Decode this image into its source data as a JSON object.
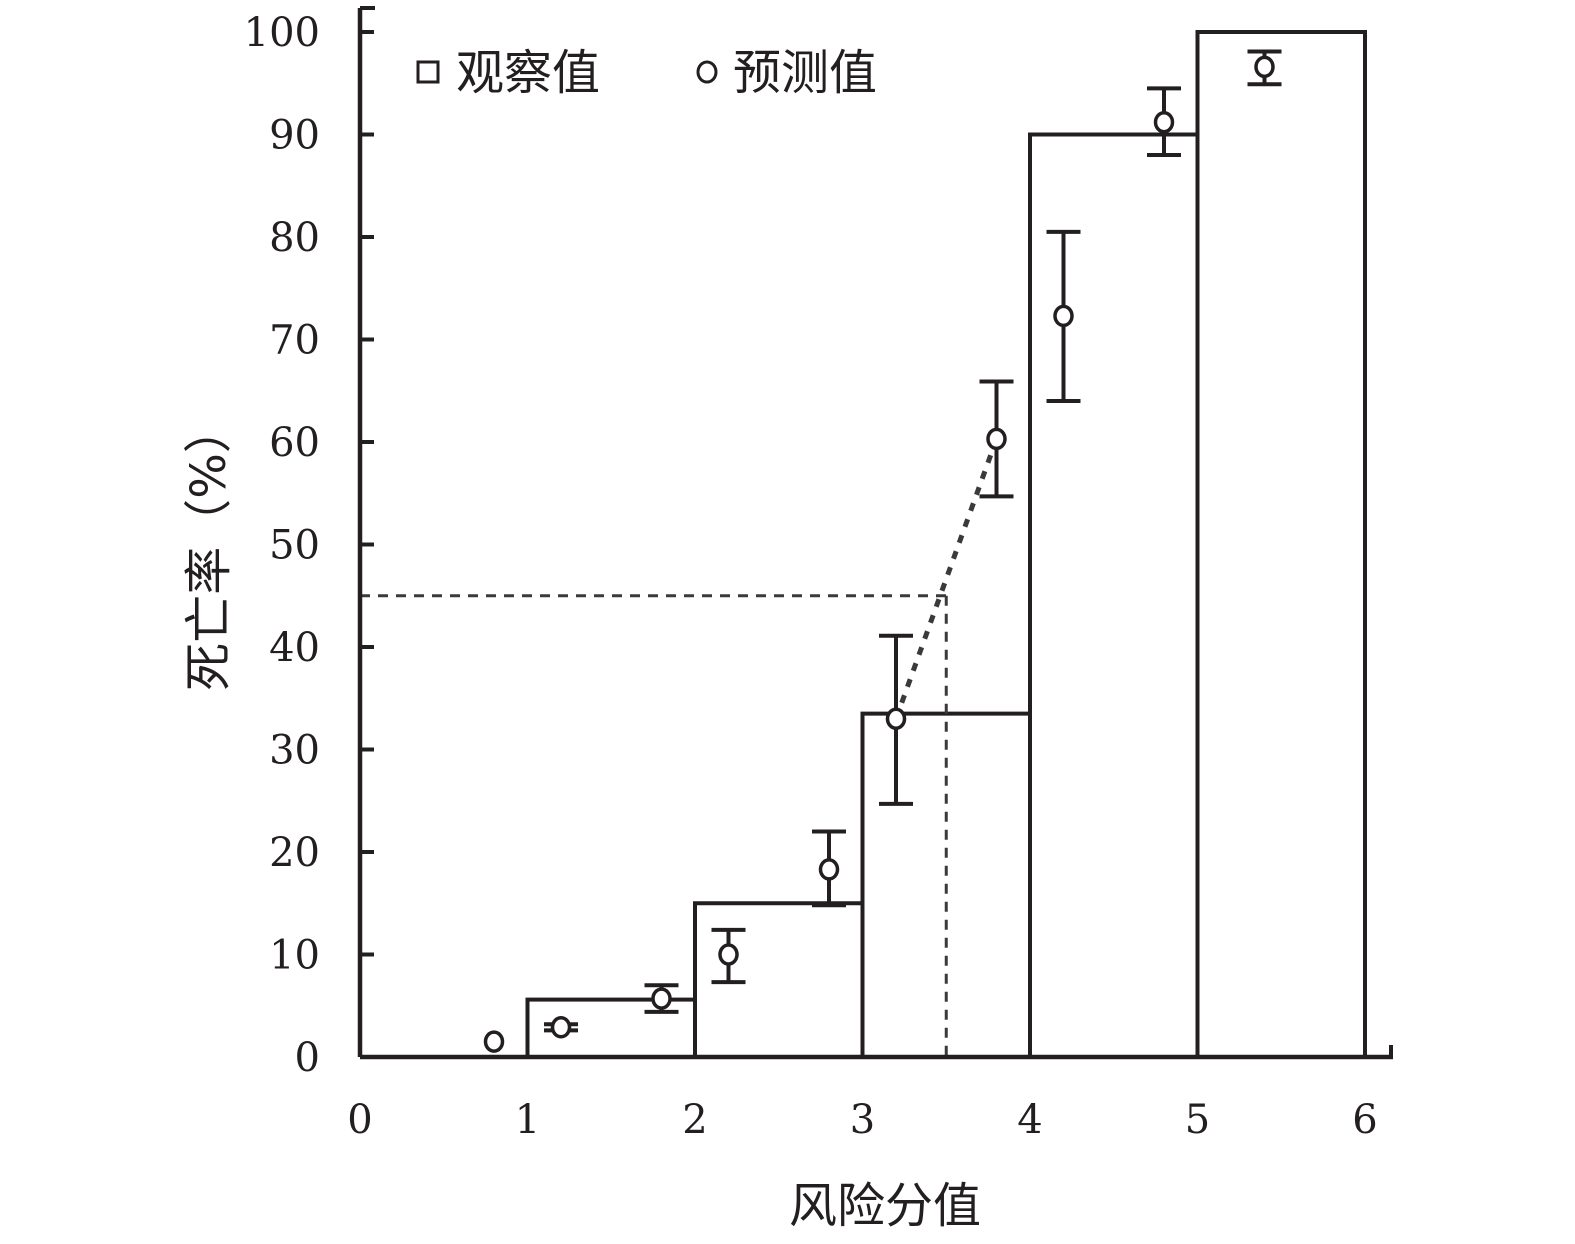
{
  "chart_data": {
    "type": "bar",
    "xlabel": "风险分值",
    "ylabel": "死亡率（%）",
    "xlim": [
      0,
      6
    ],
    "ylim": [
      0,
      100
    ],
    "x_ticks": [
      "0",
      "1",
      "2",
      "3",
      "4",
      "5",
      "6"
    ],
    "y_ticks": [
      "0",
      "10",
      "20",
      "30",
      "40",
      "50",
      "60",
      "70",
      "80",
      "90",
      "100"
    ],
    "legend": {
      "placement": "top-left",
      "entries": [
        {
          "symbol": "square",
          "label": "观察值"
        },
        {
          "symbol": "circle",
          "label": "预测值"
        }
      ]
    },
    "series": [
      {
        "kind": "bars",
        "bins": [
          [
            0,
            1
          ],
          [
            1,
            2
          ],
          [
            2,
            3
          ],
          [
            3,
            4
          ],
          [
            4,
            5
          ],
          [
            5,
            6
          ]
        ],
        "values": [
          0,
          5.6,
          15,
          33.5,
          90,
          100
        ]
      },
      {
        "kind": "points",
        "x": [
          0.8,
          1.2,
          1.8,
          2.2,
          2.8,
          3.2,
          3.8,
          4.2,
          4.8,
          5.4
        ],
        "values": [
          1.5,
          2.9,
          5.7,
          10.0,
          18.3,
          33.0,
          60.3,
          72.3,
          91.2,
          96.6
        ],
        "err_low": [
          1.5,
          2.6,
          4.4,
          7.3,
          14.8,
          24.7,
          54.7,
          64.0,
          88.0,
          94.9
        ],
        "err_high": [
          1.5,
          3.2,
          7.0,
          12.4,
          22.0,
          41.1,
          65.9,
          80.5,
          94.5,
          98.1
        ]
      }
    ],
    "threshold": {
      "x": 3.5,
      "y": 45
    },
    "trend_segment": {
      "from": [
        3.2,
        33.0
      ],
      "to": [
        3.8,
        60.3
      ]
    }
  }
}
